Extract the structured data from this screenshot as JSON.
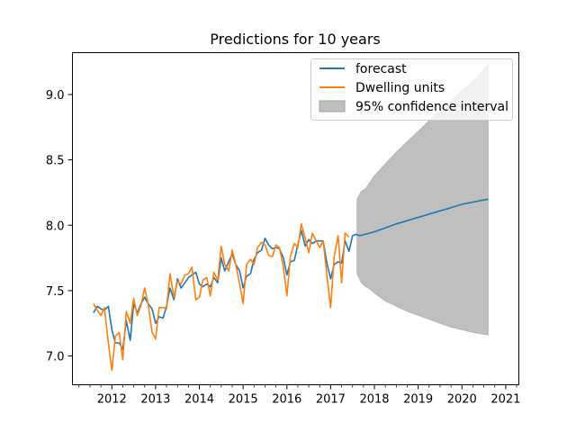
{
  "chart_data": {
    "type": "line",
    "title": "Predictions for 10 years",
    "xlabel": "",
    "ylabel": "",
    "xlim": [
      2011.1,
      2021.3
    ],
    "ylim": [
      6.78,
      9.32
    ],
    "x_ticks": [
      2012,
      2013,
      2014,
      2015,
      2016,
      2017,
      2018,
      2019,
      2020,
      2021
    ],
    "y_ticks": [
      7.0,
      7.5,
      8.0,
      8.5,
      9.0
    ],
    "x_tick_labels": [
      "2012",
      "2013",
      "2014",
      "2015",
      "2016",
      "2017",
      "2018",
      "2019",
      "2020",
      "2021"
    ],
    "y_tick_labels": [
      "7.0",
      "7.5",
      "8.0",
      "8.5",
      "9.0"
    ],
    "grid": false,
    "legend_position": "top-right",
    "legend": [
      "forecast",
      "Dwelling units",
      "95% confidence interval"
    ],
    "series": [
      {
        "name": "forecast",
        "color": "#1f77b4",
        "x": [
          2011.58,
          2011.67,
          2011.75,
          2011.83,
          2011.92,
          2012.0,
          2012.08,
          2012.17,
          2012.25,
          2012.33,
          2012.42,
          2012.5,
          2012.58,
          2012.67,
          2012.75,
          2012.83,
          2012.92,
          2013.0,
          2013.08,
          2013.17,
          2013.25,
          2013.33,
          2013.42,
          2013.5,
          2013.58,
          2013.67,
          2013.75,
          2013.83,
          2013.92,
          2014.0,
          2014.08,
          2014.17,
          2014.25,
          2014.33,
          2014.42,
          2014.5,
          2014.58,
          2014.67,
          2014.75,
          2014.83,
          2014.92,
          2015.0,
          2015.08,
          2015.17,
          2015.25,
          2015.33,
          2015.42,
          2015.5,
          2015.58,
          2015.67,
          2015.75,
          2015.83,
          2015.92,
          2016.0,
          2016.08,
          2016.17,
          2016.25,
          2016.33,
          2016.42,
          2016.5,
          2016.58,
          2016.67,
          2016.75,
          2016.83,
          2016.92,
          2017.0,
          2017.08,
          2017.17,
          2017.25,
          2017.33,
          2017.42,
          2017.5,
          2017.58,
          2017.67,
          2018.0,
          2018.5,
          2019.0,
          2019.5,
          2020.0,
          2020.6
        ],
        "values": [
          7.33,
          7.38,
          7.36,
          7.35,
          7.38,
          7.2,
          7.1,
          7.1,
          7.05,
          7.27,
          7.12,
          7.4,
          7.33,
          7.4,
          7.45,
          7.4,
          7.36,
          7.25,
          7.3,
          7.29,
          7.38,
          7.52,
          7.43,
          7.59,
          7.52,
          7.56,
          7.6,
          7.62,
          7.64,
          7.55,
          7.53,
          7.55,
          7.53,
          7.6,
          7.56,
          7.75,
          7.65,
          7.72,
          7.78,
          7.7,
          7.65,
          7.52,
          7.61,
          7.63,
          7.74,
          7.79,
          7.81,
          7.9,
          7.85,
          7.82,
          7.83,
          7.82,
          7.75,
          7.62,
          7.72,
          7.73,
          7.85,
          7.96,
          7.84,
          7.89,
          7.86,
          7.88,
          7.88,
          7.88,
          7.7,
          7.59,
          7.7,
          7.72,
          7.71,
          7.88,
          7.8,
          7.92,
          7.93,
          7.92,
          7.95,
          8.01,
          8.06,
          8.11,
          8.16,
          8.2
        ]
      },
      {
        "name": "Dwelling units",
        "color": "#ff7f0e",
        "x": [
          2011.58,
          2011.67,
          2011.75,
          2011.83,
          2011.92,
          2012.0,
          2012.08,
          2012.17,
          2012.25,
          2012.33,
          2012.42,
          2012.5,
          2012.58,
          2012.67,
          2012.75,
          2012.83,
          2012.92,
          2013.0,
          2013.08,
          2013.17,
          2013.25,
          2013.33,
          2013.42,
          2013.5,
          2013.58,
          2013.67,
          2013.75,
          2013.83,
          2013.92,
          2014.0,
          2014.08,
          2014.17,
          2014.25,
          2014.33,
          2014.42,
          2014.5,
          2014.58,
          2014.67,
          2014.75,
          2014.83,
          2014.92,
          2015.0,
          2015.08,
          2015.17,
          2015.25,
          2015.33,
          2015.42,
          2015.5,
          2015.58,
          2015.67,
          2015.75,
          2015.83,
          2015.92,
          2016.0,
          2016.08,
          2016.17,
          2016.25,
          2016.33,
          2016.42,
          2016.5,
          2016.58,
          2016.67,
          2016.75,
          2016.83,
          2016.92,
          2017.0,
          2017.08,
          2017.17,
          2017.25,
          2017.33,
          2017.42
        ],
        "values": [
          7.4,
          7.35,
          7.31,
          7.37,
          7.1,
          6.89,
          7.15,
          7.18,
          6.97,
          7.34,
          7.25,
          7.44,
          7.31,
          7.39,
          7.52,
          7.4,
          7.18,
          7.13,
          7.37,
          7.37,
          7.36,
          7.63,
          7.45,
          7.57,
          7.55,
          7.62,
          7.63,
          7.68,
          7.43,
          7.45,
          7.58,
          7.6,
          7.46,
          7.64,
          7.58,
          7.84,
          7.7,
          7.65,
          7.81,
          7.7,
          7.55,
          7.4,
          7.7,
          7.74,
          7.7,
          7.83,
          7.87,
          7.85,
          7.77,
          7.76,
          7.85,
          7.83,
          7.68,
          7.46,
          7.76,
          7.86,
          7.83,
          8.01,
          7.9,
          7.79,
          7.94,
          7.88,
          7.83,
          7.88,
          7.6,
          7.37,
          7.76,
          7.92,
          7.56,
          7.94,
          7.91
        ]
      }
    ],
    "confidence_interval": {
      "name": "95% confidence interval",
      "color": "#bfbfbf",
      "x": [
        2017.6,
        2017.7,
        2017.8,
        2017.9,
        2018.0,
        2018.25,
        2018.5,
        2018.75,
        2019.0,
        2019.25,
        2019.5,
        2019.75,
        2020.0,
        2020.25,
        2020.6
      ],
      "upper": [
        8.2,
        8.26,
        8.28,
        8.33,
        8.38,
        8.47,
        8.56,
        8.64,
        8.72,
        8.8,
        8.88,
        8.95,
        9.03,
        9.1,
        9.23
      ],
      "lower": [
        7.63,
        7.56,
        7.53,
        7.51,
        7.48,
        7.42,
        7.38,
        7.34,
        7.31,
        7.28,
        7.25,
        7.22,
        7.2,
        7.18,
        7.16
      ]
    }
  }
}
